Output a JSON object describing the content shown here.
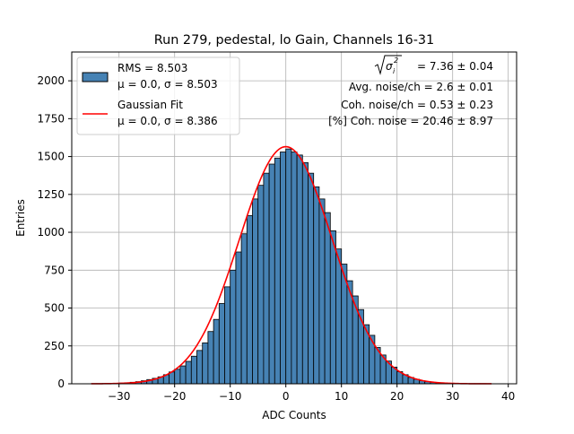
{
  "chart_data": {
    "type": "bar",
    "title": "Run 279, pedestal, lo Gain, Channels 16-31",
    "xlabel": "ADC Counts",
    "ylabel": "Entries",
    "xlim": [
      -38.5,
      41.5
    ],
    "ylim": [
      0,
      2190
    ],
    "grid": true,
    "legend_placement": "top-left",
    "x_ticks": [
      -30,
      -20,
      -10,
      0,
      10,
      20,
      30,
      40
    ],
    "x_tick_labels": [
      "−30",
      "−20",
      "−10",
      "0",
      "10",
      "20",
      "30",
      "40"
    ],
    "y_ticks": [
      0,
      250,
      500,
      750,
      1000,
      1250,
      1500,
      1750,
      2000
    ],
    "y_tick_labels": [
      "0",
      "250",
      "500",
      "750",
      "1000",
      "1250",
      "1500",
      "1750",
      "2000"
    ],
    "bins": {
      "start": -35,
      "width": 1,
      "counts": [
        1,
        1,
        2,
        2,
        3,
        5,
        7,
        10,
        14,
        20,
        28,
        36,
        46,
        60,
        78,
        96,
        118,
        148,
        182,
        220,
        270,
        345,
        425,
        530,
        640,
        750,
        870,
        990,
        1110,
        1220,
        1310,
        1390,
        1450,
        1490,
        1530,
        1550,
        1530,
        1510,
        1460,
        1390,
        1300,
        1220,
        1130,
        1010,
        890,
        790,
        680,
        580,
        490,
        390,
        320,
        240,
        190,
        150,
        110,
        80,
        60,
        42,
        30,
        20,
        14,
        10,
        7,
        5,
        3,
        2,
        2,
        1,
        1,
        1,
        1
      ]
    },
    "series": [
      {
        "name": "RMS = 8.503",
        "name_line2": "μ = 0.0, σ = 8.503",
        "kind": "histogram",
        "color": "#4682b4"
      },
      {
        "name": "Gaussian Fit",
        "name_line2": "μ = 0.0, σ = 8.386",
        "kind": "line",
        "color": "#ff0000",
        "amplitude": 1565,
        "mu": 0.0,
        "sigma": 8.386,
        "x_range": [
          -35,
          37
        ]
      }
    ],
    "annotations": {
      "sqrt_label": "σ",
      "sqrt_sup": "2",
      "sqrt_sub": "i",
      "line1_value": " = 7.36 ± 0.04",
      "line2": "Avg. noise/ch = 2.6 ± 0.01",
      "line3": "Coh. noise/ch = 0.53 ± 0.23",
      "line4": "[%] Coh. noise = 20.46 ± 8.97"
    }
  }
}
